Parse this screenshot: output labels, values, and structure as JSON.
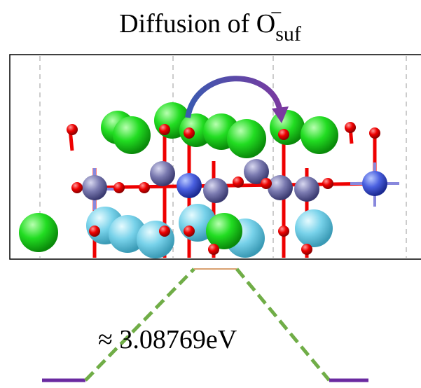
{
  "title": {
    "main": "Diffusion of O",
    "subscript": "suf",
    "superscript": "−"
  },
  "energy_label": "≈ 3.08769eV"
}
